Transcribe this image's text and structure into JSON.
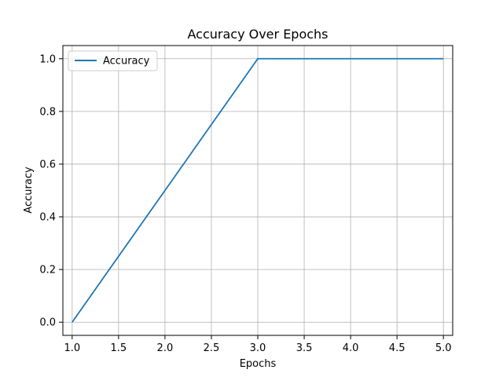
{
  "chart_data": {
    "type": "line",
    "title": "Accuracy Over Epochs",
    "xlabel": "Epochs",
    "ylabel": "Accuracy",
    "xlim": [
      0.9,
      5.1
    ],
    "ylim": [
      -0.05,
      1.05
    ],
    "x_ticks": [
      "1.0",
      "1.5",
      "2.0",
      "2.5",
      "3.0",
      "3.5",
      "4.0",
      "4.5",
      "5.0"
    ],
    "y_ticks": [
      "0.0",
      "0.2",
      "0.4",
      "0.6",
      "0.8",
      "1.0"
    ],
    "grid": true,
    "legend_position": "upper-left",
    "series": [
      {
        "name": "Accuracy",
        "color": "#1f77b4",
        "x": [
          1,
          2,
          3,
          4,
          5
        ],
        "y": [
          0.0,
          0.5,
          1.0,
          1.0,
          1.0
        ]
      }
    ]
  }
}
